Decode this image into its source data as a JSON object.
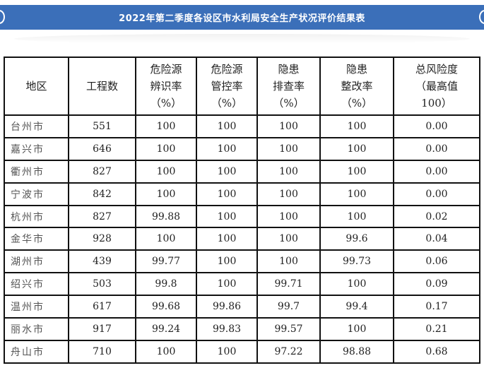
{
  "title": "2022年第二季度各设区市水利局安全生产状况评价结果表",
  "table": {
    "headers": [
      [
        "地区"
      ],
      [
        "工程数"
      ],
      [
        "危险源",
        "辨识率",
        "（%）"
      ],
      [
        "危险源",
        "管控率",
        "（%）"
      ],
      [
        "隐患",
        "排查率",
        "（%）"
      ],
      [
        "隐患",
        "整改率",
        "（%）"
      ],
      [
        "总风险度",
        "（最高值",
        "100）"
      ]
    ],
    "rows": [
      [
        "台州市",
        "551",
        "100",
        "100",
        "100",
        "100",
        "0.00"
      ],
      [
        "嘉兴市",
        "646",
        "100",
        "100",
        "100",
        "100",
        "0.00"
      ],
      [
        "衢州市",
        "827",
        "100",
        "100",
        "100",
        "100",
        "0.00"
      ],
      [
        "宁波市",
        "842",
        "100",
        "100",
        "100",
        "100",
        "0.00"
      ],
      [
        "杭州市",
        "827",
        "99.88",
        "100",
        "100",
        "100",
        "0.02"
      ],
      [
        "金华市",
        "928",
        "100",
        "100",
        "100",
        "99.6",
        "0.04"
      ],
      [
        "湖州市",
        "439",
        "99.77",
        "100",
        "100",
        "99.73",
        "0.06"
      ],
      [
        "绍兴市",
        "503",
        "99.8",
        "100",
        "99.71",
        "100",
        "0.09"
      ],
      [
        "温州市",
        "617",
        "99.68",
        "99.86",
        "99.7",
        "99.4",
        "0.17"
      ],
      [
        "丽水市",
        "917",
        "99.24",
        "99.83",
        "99.57",
        "100",
        "0.21"
      ],
      [
        "舟山市",
        "710",
        "100",
        "100",
        "97.22",
        "98.88",
        "0.68"
      ]
    ]
  }
}
